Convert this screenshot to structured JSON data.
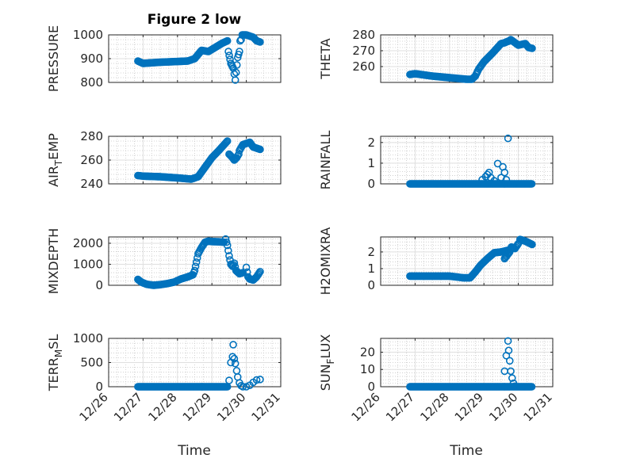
{
  "figure": {
    "title": "Figure 2 low",
    "xlabel": "Time",
    "marker_color": "#0072bd"
  },
  "chart_data": [
    {
      "type": "scatter",
      "panel": "left-1",
      "title": "Figure 2 low",
      "ylabel": "PRESSURE",
      "ylim": [
        800,
        1000
      ],
      "yticks": [
        800,
        900,
        1000
      ],
      "x_range": [
        "12/26",
        "12/31"
      ],
      "grid": true,
      "segments": [
        {
          "x": [
            0.85,
            1.0,
            1.5,
            2.0,
            2.3,
            2.5,
            2.7,
            2.9,
            3.3,
            3.45
          ],
          "y": [
            890,
            880,
            885,
            888,
            890,
            900,
            935,
            930,
            965,
            975
          ]
        },
        {
          "x": [
            3.48,
            3.55,
            3.62,
            3.68,
            3.75,
            3.8
          ],
          "y": [
            930,
            880,
            860,
            810,
            905,
            930
          ]
        },
        {
          "x": [
            3.82,
            3.85,
            3.88,
            4.0,
            4.2,
            4.3,
            4.4
          ],
          "y": [
            975,
            980,
            1000,
            1000,
            990,
            975,
            970
          ]
        }
      ]
    },
    {
      "type": "scatter",
      "panel": "right-1",
      "ylabel": "THETA",
      "ylim": [
        250,
        280
      ],
      "yticks": [
        260,
        270,
        280
      ],
      "x_range": [
        "12/26",
        "12/31"
      ],
      "grid": true,
      "segments": [
        {
          "x": [
            0.85,
            1.0,
            1.5,
            2.0,
            2.5,
            2.65,
            2.75,
            2.85,
            3.0,
            3.25,
            3.5,
            3.6,
            3.7
          ],
          "y": [
            255,
            255.5,
            254,
            253,
            252,
            252,
            254,
            258.5,
            263,
            268.5,
            274.5,
            275,
            276
          ]
        },
        {
          "x": [
            3.72,
            3.78,
            4.0,
            4.2,
            4.3,
            4.4
          ],
          "y": [
            276,
            277,
            273.5,
            274.5,
            272,
            271.5
          ]
        }
      ]
    },
    {
      "type": "scatter",
      "panel": "left-2",
      "ylabel": "AIR_TEMP",
      "ylim": [
        240,
        280
      ],
      "yticks": [
        240,
        260,
        280
      ],
      "x_range": [
        "12/26",
        "12/31"
      ],
      "grid": true,
      "segments": [
        {
          "x": [
            0.85,
            1.0,
            1.5,
            2.0,
            2.4,
            2.6,
            2.8,
            3.0,
            3.2,
            3.45
          ],
          "y": [
            247,
            246.5,
            246,
            245,
            244,
            246,
            254,
            262,
            268,
            276
          ]
        },
        {
          "x": [
            3.5,
            3.6,
            3.65,
            3.72,
            3.78
          ],
          "y": [
            265,
            262,
            260,
            262,
            265
          ]
        },
        {
          "x": [
            3.8,
            3.9,
            4.0,
            4.1,
            4.2,
            4.3,
            4.4
          ],
          "y": [
            268,
            273,
            274,
            275,
            271,
            270,
            269
          ]
        }
      ]
    },
    {
      "type": "scatter",
      "panel": "right-2",
      "ylabel": "RAINFALL",
      "ylim": [
        0,
        2.3
      ],
      "yticks": [
        0,
        1,
        2
      ],
      "x_range": [
        "12/26",
        "12/31"
      ],
      "grid": true,
      "baseline": {
        "from": 0.85,
        "to": 4.4,
        "y": 0
      },
      "points": [
        {
          "x": 2.95,
          "y": 0.2
        },
        {
          "x": 3.05,
          "y": 0.35
        },
        {
          "x": 3.1,
          "y": 0.45
        },
        {
          "x": 3.15,
          "y": 0.55
        },
        {
          "x": 3.2,
          "y": 0.3
        },
        {
          "x": 3.3,
          "y": 0.15
        },
        {
          "x": 3.4,
          "y": 0.98
        },
        {
          "x": 3.5,
          "y": 0.3
        },
        {
          "x": 3.55,
          "y": 0.82
        },
        {
          "x": 3.6,
          "y": 0.55
        },
        {
          "x": 3.65,
          "y": 0.2
        },
        {
          "x": 3.7,
          "y": 2.2
        }
      ]
    },
    {
      "type": "scatter",
      "panel": "left-3",
      "ylabel": "MIXDEPTH",
      "ylim": [
        0,
        2300
      ],
      "yticks": [
        0,
        1000,
        2000
      ],
      "x_range": [
        "12/26",
        "12/31"
      ],
      "grid": true,
      "segments": [
        {
          "x": [
            0.85,
            0.95,
            1.1,
            1.3,
            1.5,
            1.7,
            1.9,
            2.1,
            2.3,
            2.45,
            2.5,
            2.55,
            2.6,
            2.7,
            2.8,
            2.9,
            3.0,
            3.2,
            3.35
          ],
          "y": [
            280,
            150,
            50,
            0,
            30,
            80,
            150,
            300,
            400,
            500,
            700,
            1100,
            1500,
            1800,
            2050,
            2100,
            2080,
            2070,
            2050
          ]
        },
        {
          "x": [
            3.4,
            3.45,
            3.5,
            3.55,
            3.6,
            3.65,
            3.7,
            3.8,
            3.9
          ],
          "y": [
            2200,
            1900,
            1400,
            1000,
            900,
            1050,
            700,
            550,
            600
          ]
        },
        {
          "x": [
            4.0,
            4.05,
            4.1,
            4.2,
            4.3,
            4.4
          ],
          "y": [
            850,
            400,
            300,
            250,
            400,
            650
          ]
        }
      ]
    },
    {
      "type": "scatter",
      "panel": "right-3",
      "ylabel": "H2OMIXRA",
      "ylim": [
        0,
        2.9
      ],
      "yticks": [
        0,
        1,
        2
      ],
      "x_range": [
        "12/26",
        "12/31"
      ],
      "grid": true,
      "segments": [
        {
          "x": [
            0.85,
            1.5,
            2.0,
            2.4,
            2.6,
            2.75,
            2.9,
            3.1,
            3.3,
            3.5,
            3.7
          ],
          "y": [
            0.55,
            0.55,
            0.55,
            0.45,
            0.45,
            0.8,
            1.2,
            1.6,
            1.95,
            2.0,
            2.1
          ]
        },
        {
          "x": [
            3.6,
            3.75,
            3.8,
            3.9,
            4.0
          ],
          "y": [
            1.6,
            2.0,
            2.3,
            2.2,
            2.5
          ]
        },
        {
          "x": [
            4.05,
            4.2,
            4.3,
            4.4
          ],
          "y": [
            2.75,
            2.65,
            2.55,
            2.45
          ]
        }
      ]
    },
    {
      "type": "scatter",
      "panel": "left-4",
      "ylabel": "TERR_MSL",
      "ylim": [
        0,
        1000
      ],
      "yticks": [
        0,
        500,
        1000
      ],
      "x_range": [
        "12/26",
        "12/31"
      ],
      "grid": true,
      "baseline": {
        "from": 0.85,
        "to": 3.45,
        "y": 0
      },
      "points": [
        {
          "x": 3.5,
          "y": 130
        },
        {
          "x": 3.55,
          "y": 500
        },
        {
          "x": 3.6,
          "y": 620
        },
        {
          "x": 3.62,
          "y": 870
        },
        {
          "x": 3.65,
          "y": 580
        },
        {
          "x": 3.68,
          "y": 480
        },
        {
          "x": 3.72,
          "y": 330
        },
        {
          "x": 3.75,
          "y": 200
        },
        {
          "x": 3.8,
          "y": 80
        },
        {
          "x": 3.85,
          "y": 20
        },
        {
          "x": 3.9,
          "y": 0
        },
        {
          "x": 4.0,
          "y": 0
        },
        {
          "x": 4.1,
          "y": 30
        },
        {
          "x": 4.2,
          "y": 90
        },
        {
          "x": 4.3,
          "y": 140
        },
        {
          "x": 4.4,
          "y": 150
        }
      ]
    },
    {
      "type": "scatter",
      "panel": "right-4",
      "ylabel": "SUN_FLUX",
      "ylim": [
        0,
        28
      ],
      "yticks": [
        0,
        10,
        20
      ],
      "x_range": [
        "12/26",
        "12/31"
      ],
      "grid": true,
      "baseline": {
        "from": 0.85,
        "to": 4.4,
        "y": 0
      },
      "points": [
        {
          "x": 3.6,
          "y": 9
        },
        {
          "x": 3.65,
          "y": 18
        },
        {
          "x": 3.7,
          "y": 26.5
        },
        {
          "x": 3.72,
          "y": 21
        },
        {
          "x": 3.75,
          "y": 15
        },
        {
          "x": 3.78,
          "y": 9
        },
        {
          "x": 3.82,
          "y": 5
        },
        {
          "x": 3.86,
          "y": 2
        },
        {
          "x": 3.9,
          "y": 0.3
        }
      ]
    }
  ],
  "x_tick_labels": [
    "12/26",
    "12/27",
    "12/28",
    "12/29",
    "12/30",
    "12/31"
  ],
  "ylabels": {
    "left-1": "PRESSURE",
    "right-1": "THETA",
    "left-2": {
      "main": "AIR",
      "sub": "T",
      "rest": "EMP"
    },
    "right-2": "RAINFALL",
    "left-3": "MIXDEPTH",
    "right-3": "H2OMIXRA",
    "left-4": {
      "main": "TERR",
      "sub": "M",
      "rest": "SL"
    },
    "right-4": {
      "main": "SUN",
      "sub": "F",
      "rest": "LUX"
    }
  }
}
